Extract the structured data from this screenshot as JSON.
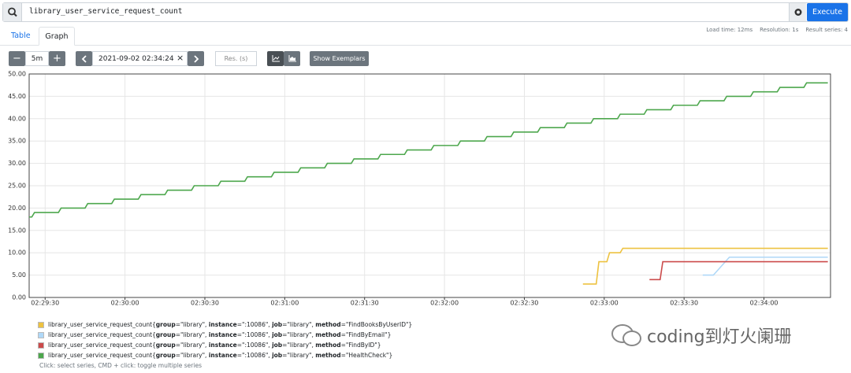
{
  "query": "library_user_service_request_count",
  "execute": "Execute",
  "tabs": [
    "Table",
    "Graph"
  ],
  "stats": [
    "Load time: 12ms",
    "Resolution: 1s",
    "Result series: 4"
  ],
  "controls": {
    "range": "5m",
    "end_time": "2021-09-02 02:34:24",
    "resolution": "Res. (s)",
    "exemplars": "Show Exemplars"
  },
  "chart_data": {
    "type": "line",
    "xlim": [
      "02:29:24",
      "02:34:25"
    ],
    "xticks": [
      "02:29:30",
      "02:30:00",
      "02:30:30",
      "02:31:00",
      "02:31:30",
      "02:32:00",
      "02:32:30",
      "02:33:00",
      "02:33:30",
      "02:34:00"
    ],
    "ylim": [
      0,
      50
    ],
    "yticks": [
      {
        "value": 0,
        "label": "0.00"
      },
      {
        "value": 5,
        "label": "5.00"
      },
      {
        "value": 10,
        "label": "10.00"
      },
      {
        "value": 15,
        "label": "15.00"
      },
      {
        "value": 20,
        "label": "20.00"
      },
      {
        "value": 25,
        "label": "25.00"
      },
      {
        "value": 30,
        "label": "30.00"
      },
      {
        "value": 35,
        "label": "35.00"
      },
      {
        "value": 40,
        "label": "40.00"
      },
      {
        "value": 45,
        "label": "45.00"
      },
      {
        "value": 50,
        "label": "50.00"
      }
    ],
    "grid": true,
    "series": [
      {
        "name": "library_user_service_request_count{group=\"library\", instance=\":10086\", job=\"library\", method=\"FindBooksByUserID\"}",
        "color": "#edc240",
        "x": [
          "02:32:52",
          "02:32:57",
          "02:32:58",
          "02:33:01",
          "02:33:02",
          "02:33:06",
          "02:33:07",
          "02:34:24"
        ],
        "values": [
          3,
          3,
          8,
          8,
          10,
          10,
          11,
          11
        ]
      },
      {
        "name": "library_user_service_request_count{group=\"library\", instance=\":10086\", job=\"library\", method=\"FindByEmail\"}",
        "color": "#afd8f8",
        "x": [
          "02:33:37",
          "02:33:41",
          "02:33:47",
          "02:34:24"
        ],
        "values": [
          5,
          5,
          9,
          9
        ]
      },
      {
        "name": "library_user_service_request_count{group=\"library\", instance=\":10086\", job=\"library\", method=\"FindByID\"}",
        "color": "#cb4b4b",
        "x": [
          "02:33:17",
          "02:33:21",
          "02:33:22",
          "02:34:24"
        ],
        "values": [
          4,
          4,
          8,
          8
        ]
      },
      {
        "name": "library_user_service_request_count{group=\"library\", instance=\":10086\", job=\"library\", method=\"HealthCheck\"}",
        "color": "#4da74d",
        "x": [
          "02:29:24",
          "02:29:25",
          "02:29:26",
          "02:29:35",
          "02:29:36",
          "02:29:45",
          "02:29:46",
          "02:29:55",
          "02:29:56",
          "02:30:05",
          "02:30:06",
          "02:30:15",
          "02:30:16",
          "02:30:25",
          "02:30:26",
          "02:30:35",
          "02:30:36",
          "02:30:45",
          "02:30:46",
          "02:30:55",
          "02:30:56",
          "02:31:05",
          "02:31:06",
          "02:31:15",
          "02:31:16",
          "02:31:25",
          "02:31:26",
          "02:31:35",
          "02:31:36",
          "02:31:45",
          "02:31:46",
          "02:31:55",
          "02:31:56",
          "02:32:05",
          "02:32:06",
          "02:32:15",
          "02:32:16",
          "02:32:25",
          "02:32:26",
          "02:32:35",
          "02:32:36",
          "02:32:45",
          "02:32:46",
          "02:32:55",
          "02:32:56",
          "02:33:05",
          "02:33:06",
          "02:33:15",
          "02:33:16",
          "02:33:25",
          "02:33:26",
          "02:33:35",
          "02:33:36",
          "02:33:45",
          "02:33:46",
          "02:33:55",
          "02:33:56",
          "02:34:05",
          "02:34:06",
          "02:34:15",
          "02:34:16",
          "02:34:24"
        ],
        "values": [
          18,
          18,
          19,
          19,
          20,
          20,
          21,
          21,
          22,
          22,
          23,
          23,
          24,
          24,
          25,
          25,
          26,
          26,
          27,
          27,
          28,
          28,
          29,
          29,
          30,
          30,
          31,
          31,
          32,
          32,
          33,
          33,
          34,
          34,
          35,
          35,
          36,
          36,
          37,
          37,
          38,
          38,
          39,
          39,
          40,
          40,
          41,
          41,
          42,
          42,
          43,
          43,
          44,
          44,
          45,
          45,
          46,
          46,
          47,
          47,
          48,
          48
        ]
      }
    ]
  },
  "hint": "Click: select series, CMD + click: toggle multiple series",
  "watermark": "coding到灯火阑珊"
}
